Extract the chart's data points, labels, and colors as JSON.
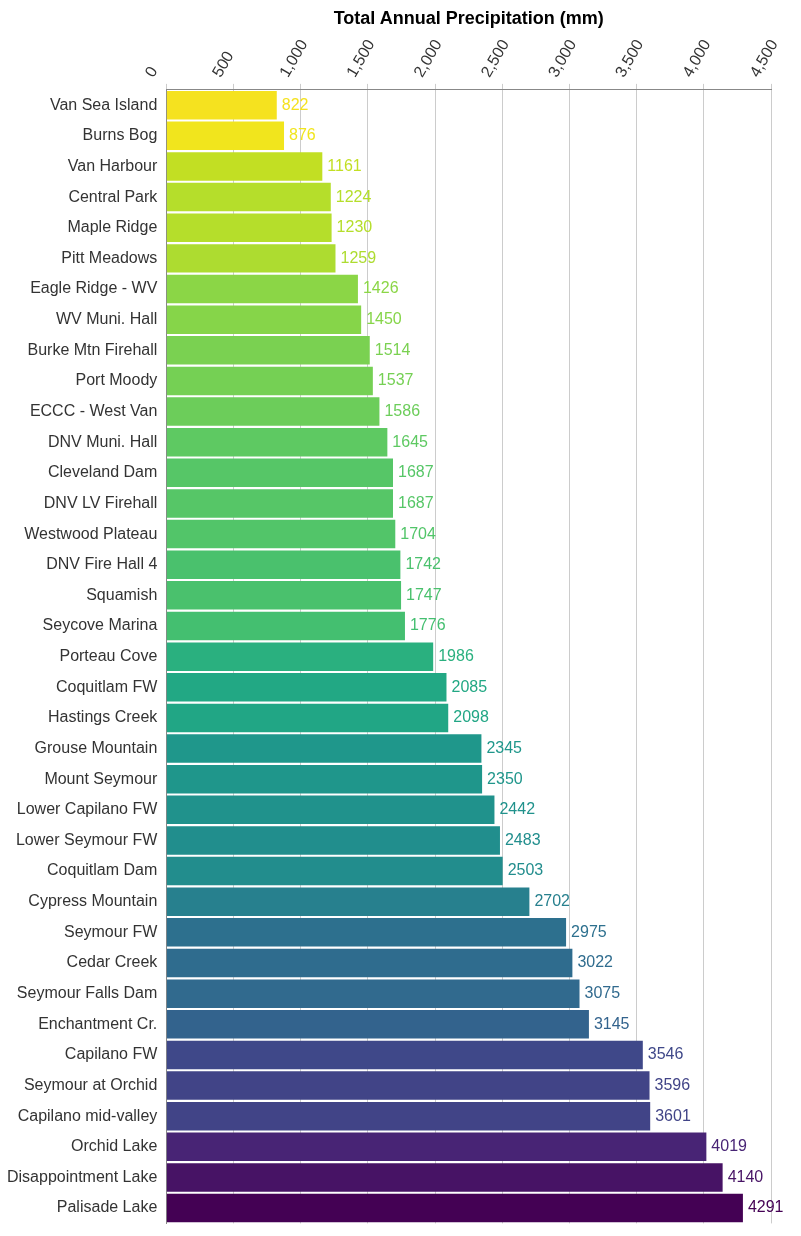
{
  "chart_data": {
    "type": "bar",
    "orientation": "horizontal",
    "xlabel": "Total Annual Precipitation (mm)",
    "categories": [
      "Van Sea Island",
      "Burns Bog",
      "Van Harbour",
      "Central Park",
      "Maple Ridge",
      "Pitt Meadows",
      "Eagle Ridge - WV",
      "WV Muni. Hall",
      "Burke Mtn Firehall",
      "Port Moody",
      "ECCC - West Van",
      "DNV Muni. Hall",
      "Cleveland Dam",
      "DNV LV Firehall",
      "Westwood Plateau",
      "DNV Fire Hall 4",
      "Squamish",
      "Seycove Marina",
      "Porteau Cove",
      "Coquitlam FW",
      "Hastings Creek",
      "Grouse Mountain",
      "Mount Seymour",
      "Lower Capilano FW",
      "Lower Seymour FW",
      "Coquitlam Dam",
      "Cypress Mountain",
      "Seymour FW",
      "Cedar Creek",
      "Seymour Falls Dam",
      "Enchantment Cr.",
      "Capilano FW",
      "Seymour at Orchid",
      "Capilano mid-valley",
      "Orchid Lake",
      "Disappointment Lake",
      "Palisade Lake"
    ],
    "values": [
      822,
      876,
      1161,
      1224,
      1230,
      1259,
      1426,
      1450,
      1514,
      1537,
      1586,
      1645,
      1687,
      1687,
      1704,
      1742,
      1747,
      1776,
      1986,
      2085,
      2098,
      2345,
      2350,
      2442,
      2483,
      2503,
      2702,
      2975,
      3022,
      3075,
      3145,
      3546,
      3596,
      3601,
      4019,
      4140,
      4291
    ],
    "colors": [
      "#f5e21f",
      "#f1e51d",
      "#c2df23",
      "#b5de2b",
      "#b5de2b",
      "#addc30",
      "#8bd646",
      "#86d549",
      "#7ad151",
      "#75d054",
      "#6ccd5a",
      "#5ec962",
      "#56c667",
      "#56c667",
      "#52c569",
      "#4ac16d",
      "#4ac16d",
      "#44bf70",
      "#2ab07f",
      "#22a884",
      "#21a685",
      "#1f978b",
      "#1f968b",
      "#20928c",
      "#218e8d",
      "#228d8d",
      "#27808e",
      "#2d708e",
      "#2f6c8e",
      "#316a8e",
      "#33638d",
      "#3f4889",
      "#414487",
      "#414487",
      "#482475",
      "#471365",
      "#440154"
    ],
    "xlim": [
      0,
      4500
    ],
    "xticks": [
      0,
      500,
      {
        "value": 1000,
        "label": "1,000"
      },
      {
        "value": 1500,
        "label": "1,500"
      },
      {
        "value": 2000,
        "label": "2,000"
      },
      {
        "value": 2500,
        "label": "2,500"
      },
      {
        "value": 3000,
        "label": "3,000"
      },
      {
        "value": 3500,
        "label": "3,500"
      },
      {
        "value": 4000,
        "label": "4,000"
      },
      {
        "value": 4500,
        "label": "4,500"
      }
    ],
    "grid": "x",
    "data_labels": true
  }
}
